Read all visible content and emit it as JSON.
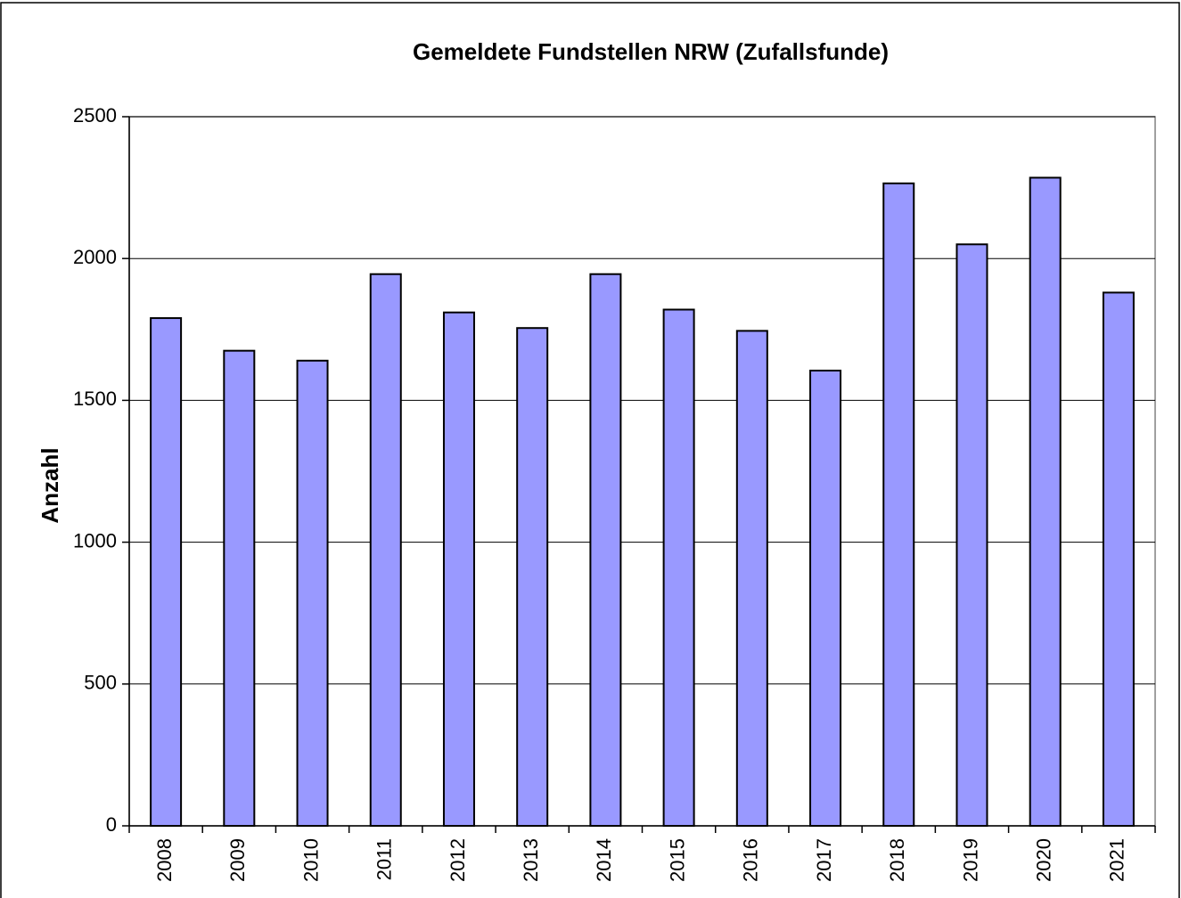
{
  "chart_data": {
    "type": "bar",
    "title": "Gemeldete Fundstellen NRW (Zufallsfunde)",
    "y_label": "Anzahl",
    "categories": [
      "2008",
      "2009",
      "2010",
      "2011",
      "2012",
      "2013",
      "2014",
      "2015",
      "2016",
      "2017",
      "2018",
      "2019",
      "2020",
      "2021"
    ],
    "values": [
      1790,
      1675,
      1640,
      1945,
      1810,
      1755,
      1945,
      1820,
      1745,
      1605,
      2265,
      2050,
      2285,
      1880
    ],
    "color": "#9999ff",
    "ylim": [
      0,
      2500
    ],
    "yticks": [
      0,
      500,
      1000,
      1500,
      2000,
      2500
    ],
    "grid": true
  }
}
